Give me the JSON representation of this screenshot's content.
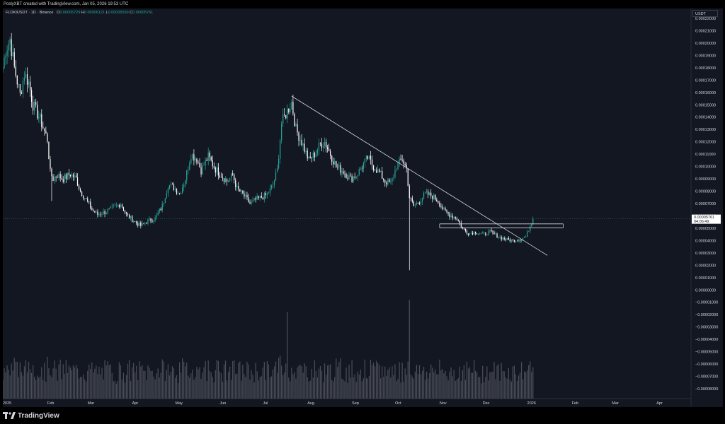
{
  "header": {
    "credit": "PoslyXBT created with TradingView.com, Jan 05, 2026 19:53 UTC"
  },
  "legend": {
    "symbol": "FLOKIUSDT · 1D · Binance",
    "open_label": "O",
    "open": "0.00005729",
    "high_label": "H",
    "high": "0.00006121",
    "low_label": "L",
    "low": "0.00005530",
    "close_label": "C",
    "close": "0.00005761"
  },
  "currency": "USDT",
  "price_tag": {
    "price": "0.00005761",
    "countdown": "04:06:49",
    "value": 5.761e-05
  },
  "footer": {
    "brand": "TradingView"
  },
  "colors": {
    "background": "#131722",
    "up": "#26a69a",
    "down": "#ffffff",
    "volume": "#787b86",
    "text": "#d1d4dc",
    "trendline": "#d1d4dc"
  },
  "icons": {
    "brand_logo": "tradingview-logo-icon"
  },
  "chart_data": {
    "type": "candlestick",
    "title": "",
    "xlabel": "",
    "ylabel": "",
    "x_ticks": [
      {
        "label": "2025",
        "date": "2025-01-01"
      },
      {
        "label": "Feb",
        "date": "2025-02-01"
      },
      {
        "label": "Mar",
        "date": "2025-03-01"
      },
      {
        "label": "Apr",
        "date": "2025-04-01"
      },
      {
        "label": "May",
        "date": "2025-05-01"
      },
      {
        "label": "Jun",
        "date": "2025-06-01"
      },
      {
        "label": "Jul",
        "date": "2025-07-01"
      },
      {
        "label": "Aug",
        "date": "2025-08-01"
      },
      {
        "label": "Sep",
        "date": "2025-09-01"
      },
      {
        "label": "Oct",
        "date": "2025-10-01"
      },
      {
        "label": "Nov",
        "date": "2025-11-01"
      },
      {
        "label": "Dec",
        "date": "2025-12-01"
      },
      {
        "label": "2026",
        "date": "2026-01-01"
      },
      {
        "label": "Feb",
        "date": "2026-02-01"
      },
      {
        "label": "Mar",
        "date": "2026-03-01"
      },
      {
        "label": "Apr",
        "date": "2026-04-01"
      }
    ],
    "x_range": [
      "2025-01-01",
      "2026-04-25"
    ],
    "y_range": [
      -8.8e-05,
      0.000228
    ],
    "y_ticks": [
      {
        "label": "0.00022000",
        "value": 0.00022
      },
      {
        "label": "0.00021000",
        "value": 0.00021
      },
      {
        "label": "0.00020000",
        "value": 0.0002
      },
      {
        "label": "0.00019000",
        "value": 0.00019
      },
      {
        "label": "0.00018000",
        "value": 0.00018
      },
      {
        "label": "0.00017000",
        "value": 0.00017
      },
      {
        "label": "0.00016000",
        "value": 0.00016
      },
      {
        "label": "0.00015000",
        "value": 0.00015
      },
      {
        "label": "0.00014000",
        "value": 0.00014
      },
      {
        "label": "0.00013000",
        "value": 0.00013
      },
      {
        "label": "0.00012000",
        "value": 0.00012
      },
      {
        "label": "0.00011000",
        "value": 0.00011
      },
      {
        "label": "0.00010000",
        "value": 0.0001
      },
      {
        "label": "0.00009000",
        "value": 9e-05
      },
      {
        "label": "0.00008000",
        "value": 8e-05
      },
      {
        "label": "0.00007000",
        "value": 7e-05
      },
      {
        "label": "0.00006000",
        "value": 6e-05
      },
      {
        "label": "0.00005000",
        "value": 5e-05
      },
      {
        "label": "0.00004000",
        "value": 4e-05
      },
      {
        "label": "0.00003000",
        "value": 3e-05
      },
      {
        "label": "0.00002000",
        "value": 2e-05
      },
      {
        "label": "0.00001000",
        "value": 1e-05
      },
      {
        "label": "0.00000000",
        "value": 0.0
      },
      {
        "label": "−0.00001000",
        "value": -1e-05
      },
      {
        "label": "−0.00002000",
        "value": -2e-05
      },
      {
        "label": "−0.00003000",
        "value": -3e-05
      },
      {
        "label": "−0.00004000",
        "value": -4e-05
      },
      {
        "label": "−0.00005000",
        "value": -5e-05
      },
      {
        "label": "−0.00006000",
        "value": -6e-05
      },
      {
        "label": "−0.00007000",
        "value": -7e-05
      },
      {
        "label": "−0.00008000",
        "value": -8e-05
      }
    ],
    "price_path": [
      [
        "2025-01-01",
        0.00018
      ],
      [
        "2025-01-03",
        0.000195
      ],
      [
        "2025-01-06",
        0.000203
      ],
      [
        "2025-01-09",
        0.00018
      ],
      [
        "2025-01-13",
        0.000158
      ],
      [
        "2025-01-16",
        0.000175
      ],
      [
        "2025-01-19",
        0.000168
      ],
      [
        "2025-01-22",
        0.00015
      ],
      [
        "2025-01-27",
        0.000138
      ],
      [
        "2025-02-01",
        0.000122
      ],
      [
        "2025-02-03",
        9.5e-05
      ],
      [
        "2025-02-05",
        9e-05
      ],
      [
        "2025-02-08",
        9.3e-05
      ],
      [
        "2025-02-12",
        9e-05
      ],
      [
        "2025-02-17",
        9.4e-05
      ],
      [
        "2025-02-21",
        9e-05
      ],
      [
        "2025-02-24",
        8e-05
      ],
      [
        "2025-02-28",
        7.3e-05
      ],
      [
        "2025-03-04",
        6.5e-05
      ],
      [
        "2025-03-08",
        6.1e-05
      ],
      [
        "2025-03-13",
        6.3e-05
      ],
      [
        "2025-03-18",
        6.6e-05
      ],
      [
        "2025-03-24",
        7e-05
      ],
      [
        "2025-03-28",
        6.1e-05
      ],
      [
        "2025-04-03",
        5.5e-05
      ],
      [
        "2025-04-07",
        5.2e-05
      ],
      [
        "2025-04-12",
        5.6e-05
      ],
      [
        "2025-04-17",
        5.8e-05
      ],
      [
        "2025-04-22",
        6.8e-05
      ],
      [
        "2025-04-26",
        8.5e-05
      ],
      [
        "2025-04-30",
        8.3e-05
      ],
      [
        "2025-05-04",
        7.8e-05
      ],
      [
        "2025-05-08",
        9e-05
      ],
      [
        "2025-05-12",
        0.00011
      ],
      [
        "2025-05-16",
        0.000106
      ],
      [
        "2025-05-19",
        9.7e-05
      ],
      [
        "2025-05-24",
        0.000108
      ],
      [
        "2025-05-29",
        9.8e-05
      ],
      [
        "2025-06-02",
        9.3e-05
      ],
      [
        "2025-06-06",
        8.8e-05
      ],
      [
        "2025-06-10",
        9.3e-05
      ],
      [
        "2025-06-13",
        8.2e-05
      ],
      [
        "2025-06-18",
        7.6e-05
      ],
      [
        "2025-06-22",
        7e-05
      ],
      [
        "2025-06-26",
        7.3e-05
      ],
      [
        "2025-06-30",
        7.5e-05
      ],
      [
        "2025-07-04",
        7.7e-05
      ],
      [
        "2025-07-08",
        8.5e-05
      ],
      [
        "2025-07-11",
        9.7e-05
      ],
      [
        "2025-07-14",
        0.000135
      ],
      [
        "2025-07-18",
        0.000145
      ],
      [
        "2025-07-21",
        0.000152
      ],
      [
        "2025-07-24",
        0.00013
      ],
      [
        "2025-07-28",
        0.00012
      ],
      [
        "2025-08-02",
        0.000105
      ],
      [
        "2025-08-06",
        0.00011
      ],
      [
        "2025-08-10",
        0.000118
      ],
      [
        "2025-08-13",
        0.00012
      ],
      [
        "2025-08-17",
        0.00011
      ],
      [
        "2025-08-21",
        0.0001
      ],
      [
        "2025-08-26",
        9.6e-05
      ],
      [
        "2025-08-31",
        9e-05
      ],
      [
        "2025-09-04",
        9.3e-05
      ],
      [
        "2025-09-08",
        0.0001
      ],
      [
        "2025-09-12",
        0.000107
      ],
      [
        "2025-09-16",
        0.0001
      ],
      [
        "2025-09-20",
        9.5e-05
      ],
      [
        "2025-09-24",
        8.8e-05
      ],
      [
        "2025-09-28",
        8.6e-05
      ],
      [
        "2025-10-02",
        0.0001
      ],
      [
        "2025-10-06",
        0.000106
      ],
      [
        "2025-10-09",
        9.8e-05
      ],
      [
        "2025-10-11",
        7.5e-05
      ],
      [
        "2025-10-14",
        6.8e-05
      ],
      [
        "2025-10-18",
        7.2e-05
      ],
      [
        "2025-10-22",
        7.8e-05
      ],
      [
        "2025-10-27",
        7.6e-05
      ],
      [
        "2025-10-31",
        7.2e-05
      ],
      [
        "2025-11-04",
        6.4e-05
      ],
      [
        "2025-11-08",
        6.1e-05
      ],
      [
        "2025-11-13",
        5.8e-05
      ],
      [
        "2025-11-17",
        5e-05
      ],
      [
        "2025-11-21",
        4.6e-05
      ],
      [
        "2025-11-26",
        4.7e-05
      ],
      [
        "2025-12-01",
        4.5e-05
      ],
      [
        "2025-12-06",
        4.7e-05
      ],
      [
        "2025-12-12",
        4.3e-05
      ],
      [
        "2025-12-17",
        4.1e-05
      ],
      [
        "2025-12-22",
        4e-05
      ],
      [
        "2025-12-27",
        4.1e-05
      ],
      [
        "2025-12-31",
        4.3e-05
      ],
      [
        "2026-01-03",
        5.2e-05
      ],
      [
        "2026-01-05",
        5.76e-05
      ]
    ],
    "wick_spikes": [
      {
        "date": "2025-02-04",
        "low": 7.2e-05
      },
      {
        "date": "2025-10-11",
        "low": 1.6e-05
      }
    ],
    "volume_spikes": [
      {
        "date": "2025-07-18",
        "value": 7e-05
      },
      {
        "date": "2025-10-11",
        "value": 8e-05
      },
      {
        "date": "2025-10-10",
        "value": 3e-05
      },
      {
        "date": "2026-01-03",
        "value": 3e-05
      }
    ],
    "trendline": {
      "start": [
        "2025-07-21",
        0.000157
      ],
      "end": [
        "2026-01-15",
        2.8e-05
      ]
    },
    "horizontal_lines": [
      5.35e-05,
      5.03e-05
    ],
    "grid": false,
    "legend": "top-left"
  }
}
